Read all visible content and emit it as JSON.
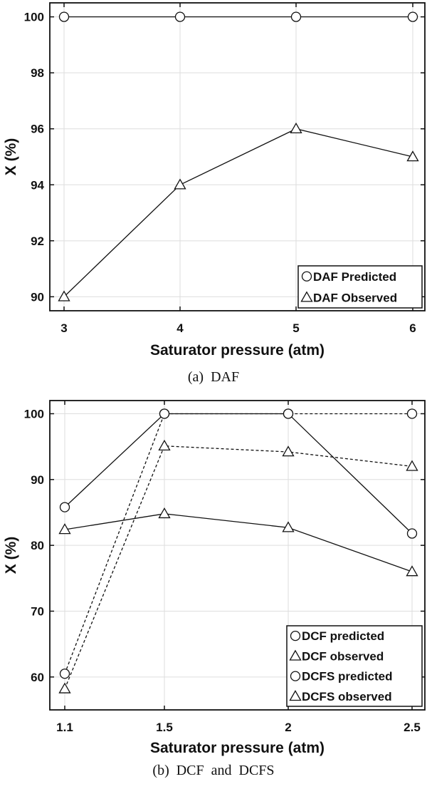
{
  "chart_data": [
    {
      "type": "line",
      "caption": "(a)  DAF",
      "xlabel": "Saturator pressure (atm)",
      "ylabel": "X (%)",
      "x": [
        3,
        4,
        5,
        6
      ],
      "xticks": [
        "3",
        "4",
        "5",
        "6"
      ],
      "ylim": [
        89.5,
        100.5
      ],
      "yticks": [
        90,
        92,
        94,
        96,
        98,
        100
      ],
      "grid": true,
      "legend_position": "bottom-right",
      "series": [
        {
          "name": "DAF Predicted",
          "values": [
            100,
            100,
            100,
            100
          ],
          "marker": "circle",
          "line": "solid"
        },
        {
          "name": "DAF Observed",
          "values": [
            90,
            94,
            96,
            95
          ],
          "marker": "triangle",
          "line": "solid"
        }
      ]
    },
    {
      "type": "line",
      "caption": "(b)  DCF  and  DCFS",
      "xlabel": "Saturator pressure (atm)",
      "ylabel": "X (%)",
      "x": [
        1.1,
        1.5,
        2,
        2.5
      ],
      "xticks": [
        "1.1",
        "1.5",
        "2",
        "2.5"
      ],
      "xscale": "categorical-equal-spacing-from-1.5",
      "ylim": [
        55,
        102
      ],
      "yticks": [
        60,
        70,
        80,
        90,
        100
      ],
      "grid": true,
      "legend_position": "bottom-right",
      "series": [
        {
          "name": "DCF predicted",
          "values": [
            85.8,
            100,
            100,
            81.8
          ],
          "marker": "circle",
          "line": "solid"
        },
        {
          "name": "DCF observed",
          "values": [
            82.4,
            84.8,
            82.7,
            76.0
          ],
          "marker": "triangle",
          "line": "solid"
        },
        {
          "name": "DCFS predicted",
          "values": [
            60.5,
            100,
            100,
            100
          ],
          "marker": "circle",
          "line": "dashed"
        },
        {
          "name": "DCFS observed",
          "values": [
            58.2,
            95.1,
            94.2,
            92.0
          ],
          "marker": "triangle",
          "line": "dashed"
        }
      ]
    }
  ]
}
